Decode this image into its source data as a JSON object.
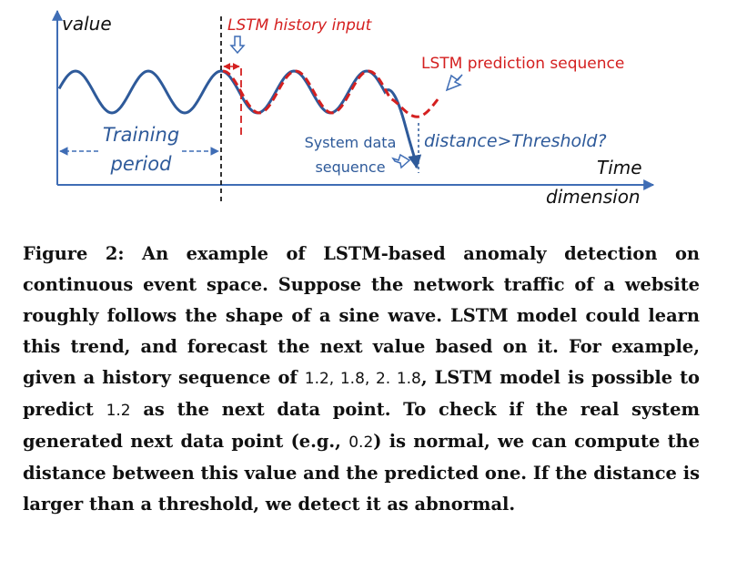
{
  "diagram": {
    "axis_y_label": "value",
    "axis_x_label_line1": "Time",
    "axis_x_label_line2": "dimension",
    "training_label_line1": "Training",
    "training_label_line2": "period",
    "history_label": "LSTM history input",
    "prediction_label": "LSTM prediction sequence",
    "system_label_line1": "System data",
    "system_label_line2": "sequence",
    "distance_label": "distance>Threshold?",
    "colors": {
      "system": "#2E5A9A",
      "prediction": "#D42020",
      "axis": "#3F6DB5",
      "divider": "#000000"
    }
  },
  "caption": {
    "s1": "Figure 2: An example of LSTM-based anomaly detection on continuous event space. Suppose the network traffic of a website roughly follows the shape of a sine wave. LSTM model could learn this trend, and forecast the next value based on it. For example, given a history sequence of",
    "n1": "1.2, 1.8, 2. 1.8",
    "s2": ", LSTM model is possible to predict",
    "n2": "1.2",
    "s3": "as the next data point. To check if the real system generated next data point (e.g.,",
    "n3": "0.2",
    "s4": ") is normal, we can compute the distance between this value and the predicted one. If the distance is larger than a threshold, we detect it as abnormal."
  }
}
